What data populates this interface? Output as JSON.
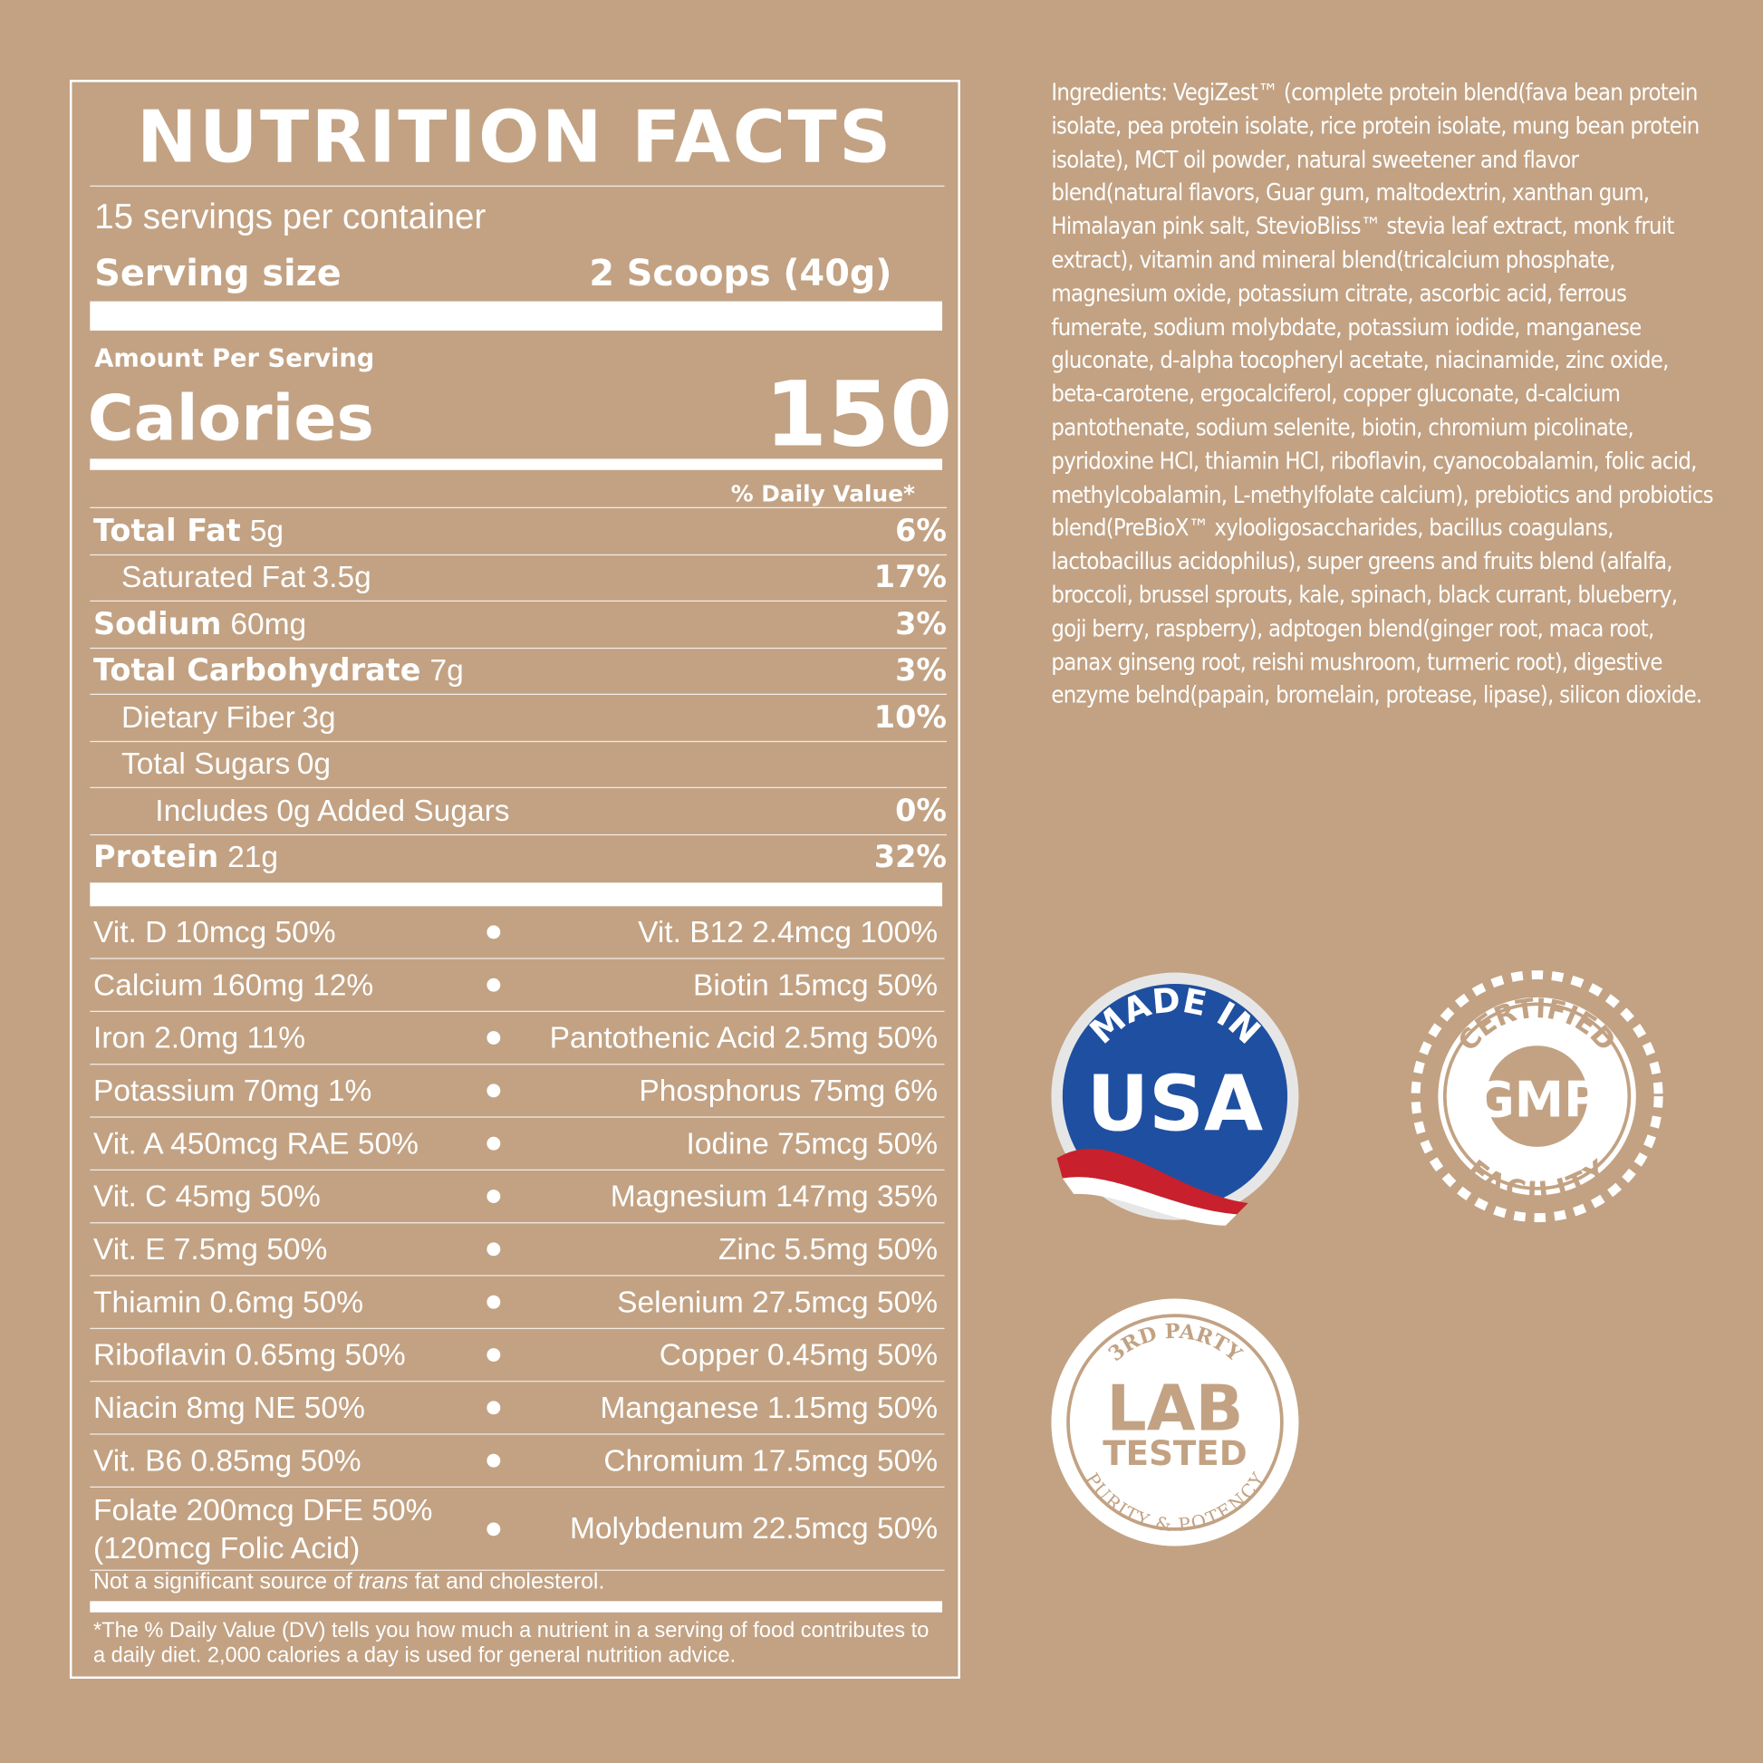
{
  "label": {
    "title": "NUTRITION FACTS",
    "servings": "15 servings per container",
    "serving_size_label": "Serving size",
    "serving_size_value": "2 Scoops (40g)",
    "amount_per_serving": "Amount Per Serving",
    "calories_label": "Calories",
    "calories_value": "150",
    "dv_header": "% Daily Value*",
    "nutrients": [
      {
        "name": "Total Fat",
        "amount": "5g",
        "dv": "6%",
        "kind": "main"
      },
      {
        "name": "Saturated Fat",
        "amount": "3.5g",
        "dv": "17%",
        "kind": "sub"
      },
      {
        "name": "Sodium",
        "amount": "60mg",
        "dv": "3%",
        "kind": "main"
      },
      {
        "name": "Total Carbohydrate",
        "amount": "7g",
        "dv": "3%",
        "kind": "main"
      },
      {
        "name": "Dietary Fiber",
        "amount": "3g",
        "dv": "10%",
        "kind": "sub"
      },
      {
        "name": "Total Sugars",
        "amount": "0g",
        "kind": "sub"
      },
      {
        "name": "Includes 0g Added Sugars",
        "dv": "0%",
        "kind": "subsub"
      },
      {
        "name": "Protein",
        "amount": "21g",
        "dv": "32%",
        "kind": "main"
      }
    ],
    "vitamins": [
      {
        "left": [
          "Vit. D 10mcg 50%"
        ],
        "right": "Vit. B12 2.4mcg 100%"
      },
      {
        "left": [
          "Calcium 160mg 12%"
        ],
        "right": "Biotin 15mcg 50%"
      },
      {
        "left": [
          "Iron 2.0mg 11%"
        ],
        "right": "Pantothenic Acid 2.5mg 50%"
      },
      {
        "left": [
          "Potassium 70mg 1%"
        ],
        "right": "Phosphorus 75mg 6%"
      },
      {
        "left": [
          "Vit. A 450mcg RAE 50%"
        ],
        "right": "Iodine 75mcg 50%"
      },
      {
        "left": [
          "Vit. C 45mg 50%"
        ],
        "right": "Magnesium 147mg 35%"
      },
      {
        "left": [
          "Vit. E 7.5mg 50%"
        ],
        "right": "Zinc 5.5mg 50%"
      },
      {
        "left": [
          "Thiamin 0.6mg 50%"
        ],
        "right": "Selenium 27.5mcg 50%"
      },
      {
        "left": [
          "Riboflavin 0.65mg 50%"
        ],
        "right": "Copper 0.45mg 50%"
      },
      {
        "left": [
          "Niacin 8mg NE 50%"
        ],
        "right": "Manganese 1.15mg 50%"
      },
      {
        "left": [
          "Vit. B6 0.85mg 50%"
        ],
        "right": "Chromium 17.5mcg 50%"
      },
      {
        "left": [
          "Folate 200mcg DFE 50%",
          "(120mcg Folic Acid)"
        ],
        "right": "Molybdenum 22.5mcg 50%"
      }
    ],
    "footnote": {
      "before": "Not a significant source of ",
      "italic": "trans",
      "after": " fat and cholesterol."
    },
    "dv_note": "*The % Daily Value (DV) tells you how much a nutrient in a serving of food contributes to a daily diet. 2,000 calories a day is used for general nutrition advice."
  },
  "ingredients": "Ingredients: VegiZest™ (complete protein blend(fava bean protein isolate, pea protein isolate, rice protein isolate, mung bean protein isolate), MCT oil powder, natural sweetener and flavor blend(natural flavors, Guar gum, maltodextrin, xanthan gum, Himalayan pink salt, StevioBliss™ stevia leaf extract, monk fruit extract), vitamin and mineral blend(tricalcium phosphate, magnesium oxide, potassium citrate, ascorbic acid, ferrous fumerate, sodium molybdate, potassium iodide, manganese gluconate, d-alpha tocopheryl acetate, niacinamide, zinc oxide, beta-carotene, ergocalciferol, copper gluconate, d-calcium pantothenate, sodium selenite, biotin, chromium picolinate, pyridoxine HCl, thiamin HCl, riboflavin, cyanocobalamin, folic acid, methylcobalamin, L-methylfolate calcium), prebiotics and probiotics blend(PreBioX™ xylooligosaccharides, bacillus coagulans, lactobacillus acidophilus), super greens and fruits blend (alfalfa, broccoli, brussel sprouts, kale, spinach, black currant, blueberry, goji berry, raspberry), adptogen blend(ginger root, maca root, panax ginseng root, reishi mushroom, turmeric root), digestive enzyme belnd(papain, bromelain, protease, lipase), silicon dioxide.",
  "badges": {
    "usa": {
      "top": "MADE IN",
      "main": "USA"
    },
    "gmp": {
      "top": "CERTIFIED",
      "main": "GMP",
      "bottom": "FACILITY"
    },
    "lab": {
      "top": "3RD PARTY",
      "main1": "LAB",
      "main2": "TESTED",
      "bottom": "PURITY & POTENCY"
    }
  }
}
